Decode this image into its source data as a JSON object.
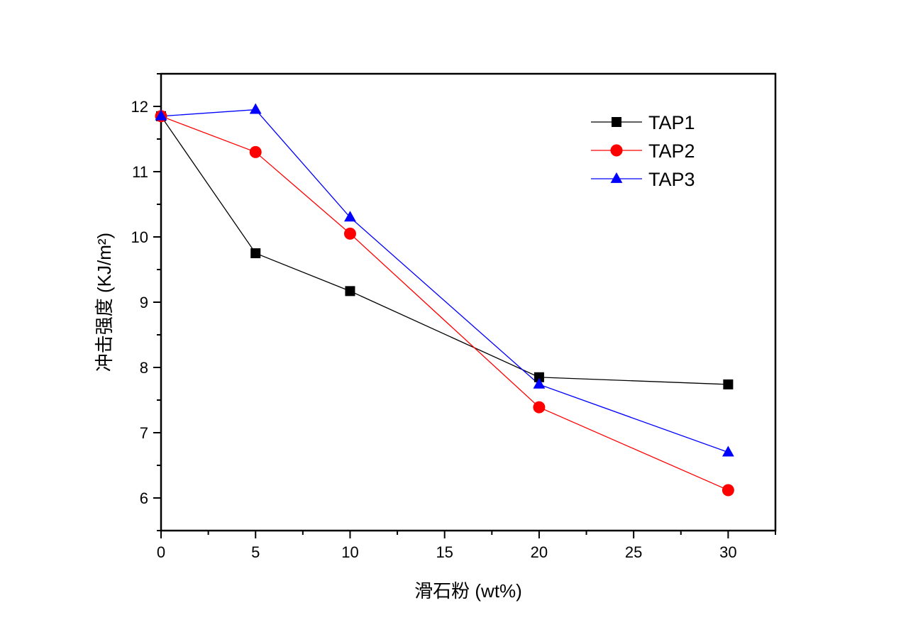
{
  "chart_data": {
    "type": "line",
    "title": "",
    "xlabel": "滑石粉 (wt%)",
    "ylabel": "冲击强度 (KJ/m²)",
    "xlim": [
      0,
      32.5
    ],
    "ylim": [
      5.5,
      12.5
    ],
    "xticks": [
      0,
      5,
      10,
      15,
      20,
      25,
      30
    ],
    "xtick_labels": [
      "0",
      "5",
      "10",
      "15",
      "20",
      "25",
      "30"
    ],
    "yticks": [
      6,
      7,
      8,
      9,
      10,
      11,
      12
    ],
    "ytick_labels": [
      "6",
      "7",
      "8",
      "9",
      "10",
      "11",
      "12"
    ],
    "x_minor_step": 2.5,
    "y_minor_step": 0.5,
    "grid": false,
    "legend_position": "top-right",
    "x": [
      0,
      5,
      10,
      20,
      30
    ],
    "series": [
      {
        "name": "TAP1",
        "color": "#000000",
        "marker": "square",
        "values": [
          11.85,
          9.75,
          9.17,
          7.85,
          7.74
        ]
      },
      {
        "name": "TAP2",
        "color": "#ff0000",
        "marker": "circle",
        "values": [
          11.85,
          11.3,
          10.05,
          7.39,
          6.12
        ]
      },
      {
        "name": "TAP3",
        "color": "#0000ff",
        "marker": "triangle",
        "values": [
          11.85,
          11.95,
          10.3,
          7.74,
          6.7
        ]
      }
    ]
  }
}
